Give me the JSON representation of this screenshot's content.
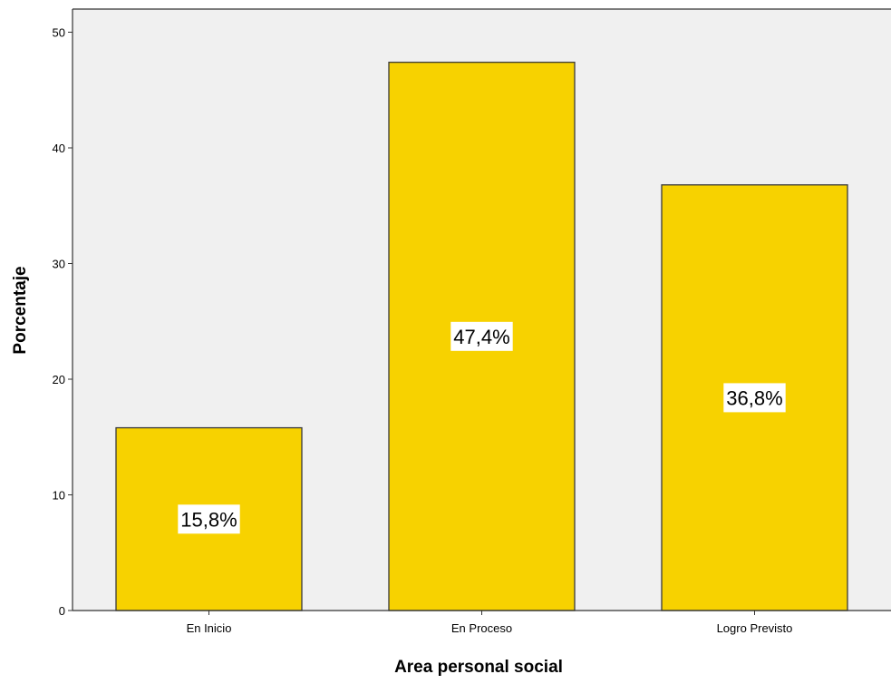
{
  "chart_data": {
    "type": "bar",
    "title": "",
    "xlabel": "Area personal social",
    "ylabel": "Porcentaje",
    "categories": [
      "En Inicio",
      "En Proceso",
      "Logro Previsto"
    ],
    "values": [
      15.8,
      47.4,
      36.8
    ],
    "data_labels": [
      "15,8%",
      "47,4%",
      "36,8%"
    ],
    "ylim": [
      0,
      52
    ],
    "yticks": [
      0,
      10,
      20,
      30,
      40,
      50
    ],
    "ytick_labels": [
      "0",
      "10",
      "20",
      "30",
      "40",
      "50"
    ],
    "grid": false,
    "legend": "none",
    "colors": {
      "bar_fill": "#F7D200",
      "bar_stroke": "#3a3a3a",
      "plot_background": "#F0F0F0",
      "axis": "#333333",
      "label_box": "#ffffff"
    }
  }
}
